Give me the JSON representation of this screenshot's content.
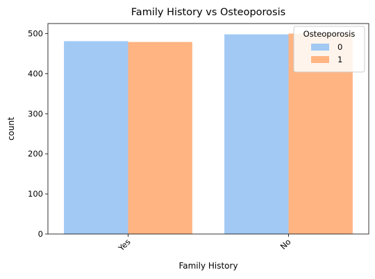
{
  "chart_data": {
    "type": "bar",
    "title": "Family History vs Osteoporosis",
    "xlabel": "Family History",
    "ylabel": "count",
    "categories": [
      "Yes",
      "No"
    ],
    "series": [
      {
        "name": "0",
        "values": [
          481,
          498
        ],
        "color": "#a1c9f4"
      },
      {
        "name": "1",
        "values": [
          479,
          500
        ],
        "color": "#ffb482"
      }
    ],
    "ylim": [
      0,
      525
    ],
    "yticks": [
      0,
      100,
      200,
      300,
      400,
      500
    ],
    "grid": false,
    "legend": {
      "title": "Osteoporosis",
      "placement": "top-right"
    },
    "xtick_rotation_deg": 45
  }
}
